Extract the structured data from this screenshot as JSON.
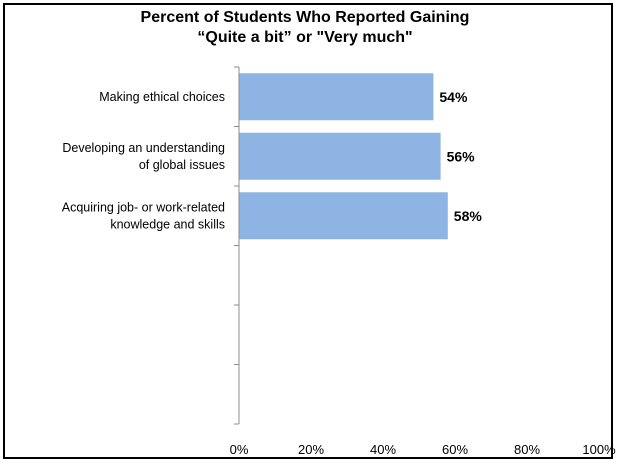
{
  "chart_data": {
    "type": "bar",
    "orientation": "horizontal",
    "title": "Percent of Students Who Reported Gaining",
    "subtitle": "“Quite a bit” or \"Very much\"",
    "categories": [
      [
        "Making ethical choices"
      ],
      [
        "Developing an understanding",
        "of global issues"
      ],
      [
        "Acquiring job- or work-related",
        "knowledge and skills"
      ]
    ],
    "values": [
      54,
      56,
      58
    ],
    "data_labels": [
      "54%",
      "56%",
      "58%"
    ],
    "xlim": [
      0,
      100
    ],
    "x_ticks": [
      0,
      20,
      40,
      60,
      80,
      100
    ],
    "x_tick_labels": [
      "0%",
      "20%",
      "40%",
      "60%",
      "80%",
      "100%"
    ],
    "category_slots": 6,
    "grid": false,
    "legend": "none",
    "bar_color": "#8EB4E3"
  }
}
